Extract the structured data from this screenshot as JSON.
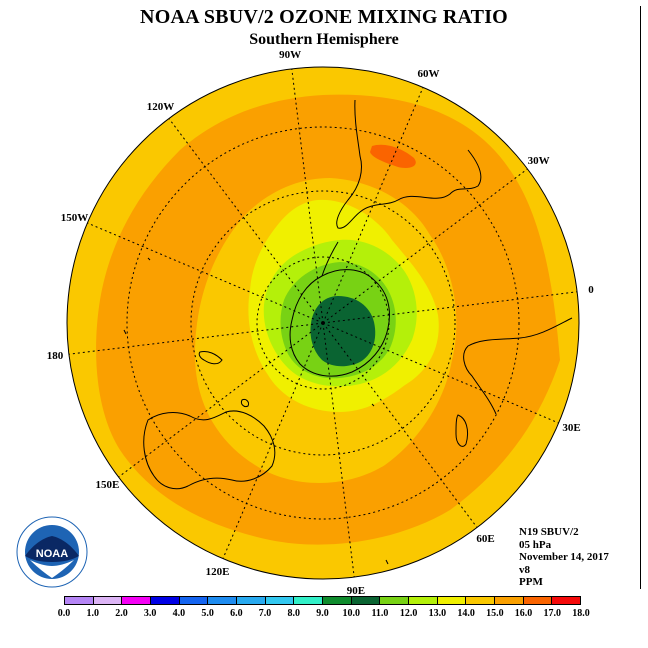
{
  "header": {
    "title": "NOAA SBUV/2 OZONE MIXING RATIO",
    "subtitle": "Southern Hemisphere"
  },
  "longitude_labels": [
    {
      "text": "90W",
      "lon": -90
    },
    {
      "text": "60W",
      "lon": -60
    },
    {
      "text": "120W",
      "lon": -120
    },
    {
      "text": "30W",
      "lon": -30
    },
    {
      "text": "150W",
      "lon": -150
    },
    {
      "text": "0",
      "lon": 0
    },
    {
      "text": "180",
      "lon": 180
    },
    {
      "text": "30E",
      "lon": 30
    },
    {
      "text": "150E",
      "lon": 150
    },
    {
      "text": "60E",
      "lon": 60
    },
    {
      "text": "120E",
      "lon": 120
    },
    {
      "text": "90E",
      "lon": 90
    }
  ],
  "info": {
    "satellite": "N19 SBUV/2",
    "level": "05 hPa",
    "date": "November 14, 2017",
    "version": "v8",
    "units": "PPM"
  },
  "logo": {
    "text": "NOAA",
    "ring_text": "NATIONAL OCEANIC AND ATMOSPHERIC ADMINISTRATION",
    "ring_text_bottom": "U.S. DEPARTMENT OF COMMERCE"
  },
  "colorbar": {
    "ticks": [
      "0.0",
      "1.0",
      "2.0",
      "3.0",
      "4.0",
      "5.0",
      "6.0",
      "7.0",
      "8.0",
      "9.0",
      "10.0",
      "11.0",
      "12.0",
      "13.0",
      "14.0",
      "15.0",
      "16.0",
      "17.0",
      "18.0"
    ],
    "colors": [
      "#b585f5",
      "#dcb4f5",
      "#f500f5",
      "#0000e6",
      "#1464f0",
      "#1e8cf0",
      "#28aaf0",
      "#32c8f0",
      "#32f0c8",
      "#0f8c2d",
      "#0a6432",
      "#78d214",
      "#b4f00a",
      "#f0f000",
      "#fac800",
      "#faa000",
      "#fa6400",
      "#f50a0a",
      "#a0522d"
    ]
  },
  "map": {
    "field_levels": [
      {
        "range": "14-15",
        "color": "#faa000"
      },
      {
        "range": "13-14",
        "color": "#fac800"
      },
      {
        "range": "12-13",
        "color": "#f0f000"
      },
      {
        "range": "11-12",
        "color": "#b4f00a"
      },
      {
        "range": "10-11",
        "color": "#78d214"
      },
      {
        "range": "9-10",
        "color": "#0a6432"
      },
      {
        "range": "15-16",
        "color": "#fa6400"
      }
    ]
  }
}
